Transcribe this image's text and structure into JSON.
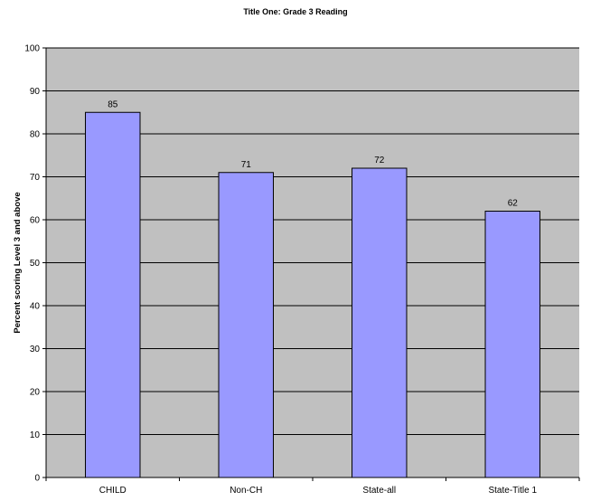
{
  "chart_data": {
    "type": "bar",
    "title": "Title One: Grade 3 Reading",
    "xlabel": "",
    "ylabel": "Percent scoring Level 3 and above",
    "categories": [
      "CHILD",
      "Non-CH",
      "State-all",
      "State-Title 1"
    ],
    "values": [
      85,
      71,
      72,
      62
    ],
    "data_labels": [
      "85",
      "71",
      "72",
      "62"
    ],
    "ylim": [
      0,
      100
    ],
    "yticks": [
      0,
      10,
      20,
      30,
      40,
      50,
      60,
      70,
      80,
      90,
      100
    ],
    "grid": true,
    "legend": "none",
    "colors": {
      "bar_fill": "#9999ff",
      "bar_stroke": "#000000",
      "plot_background": "#c0c0c0",
      "gridline": "#000000"
    }
  }
}
